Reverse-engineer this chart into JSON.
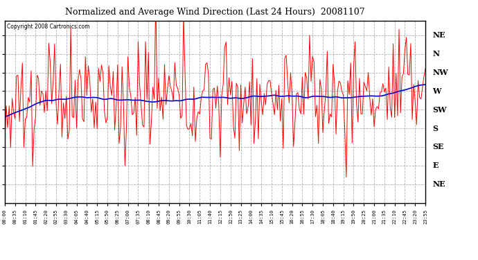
{
  "title": "Normalized and Average Wind Direction (Last 24 Hours)  20081107",
  "copyright": "Copyright 2008 Cartronics.com",
  "background_color": "#ffffff",
  "plot_bg_color": "#ffffff",
  "grid_color": "#b0b0b0",
  "red_line_color": "#ff0000",
  "blue_line_color": "#0000cc",
  "y_labels": [
    "NE",
    "N",
    "NW",
    "W",
    "SW",
    "S",
    "SE",
    "E",
    "NE"
  ],
  "y_ticks": [
    360,
    315,
    270,
    225,
    180,
    135,
    90,
    45,
    0
  ],
  "y_min": -45,
  "y_max": 395,
  "x_labels": [
    "00:00",
    "00:35",
    "01:10",
    "01:45",
    "02:20",
    "02:55",
    "03:30",
    "04:05",
    "04:40",
    "05:15",
    "05:50",
    "06:25",
    "07:00",
    "07:35",
    "08:10",
    "08:45",
    "09:20",
    "09:55",
    "10:30",
    "11:05",
    "11:40",
    "12:15",
    "12:50",
    "13:25",
    "14:00",
    "14:35",
    "15:10",
    "15:45",
    "16:20",
    "16:55",
    "17:30",
    "18:05",
    "18:40",
    "19:15",
    "19:50",
    "20:25",
    "21:00",
    "21:35",
    "22:10",
    "22:45",
    "23:20",
    "23:55"
  ],
  "seed": 12345,
  "n_points": 288
}
